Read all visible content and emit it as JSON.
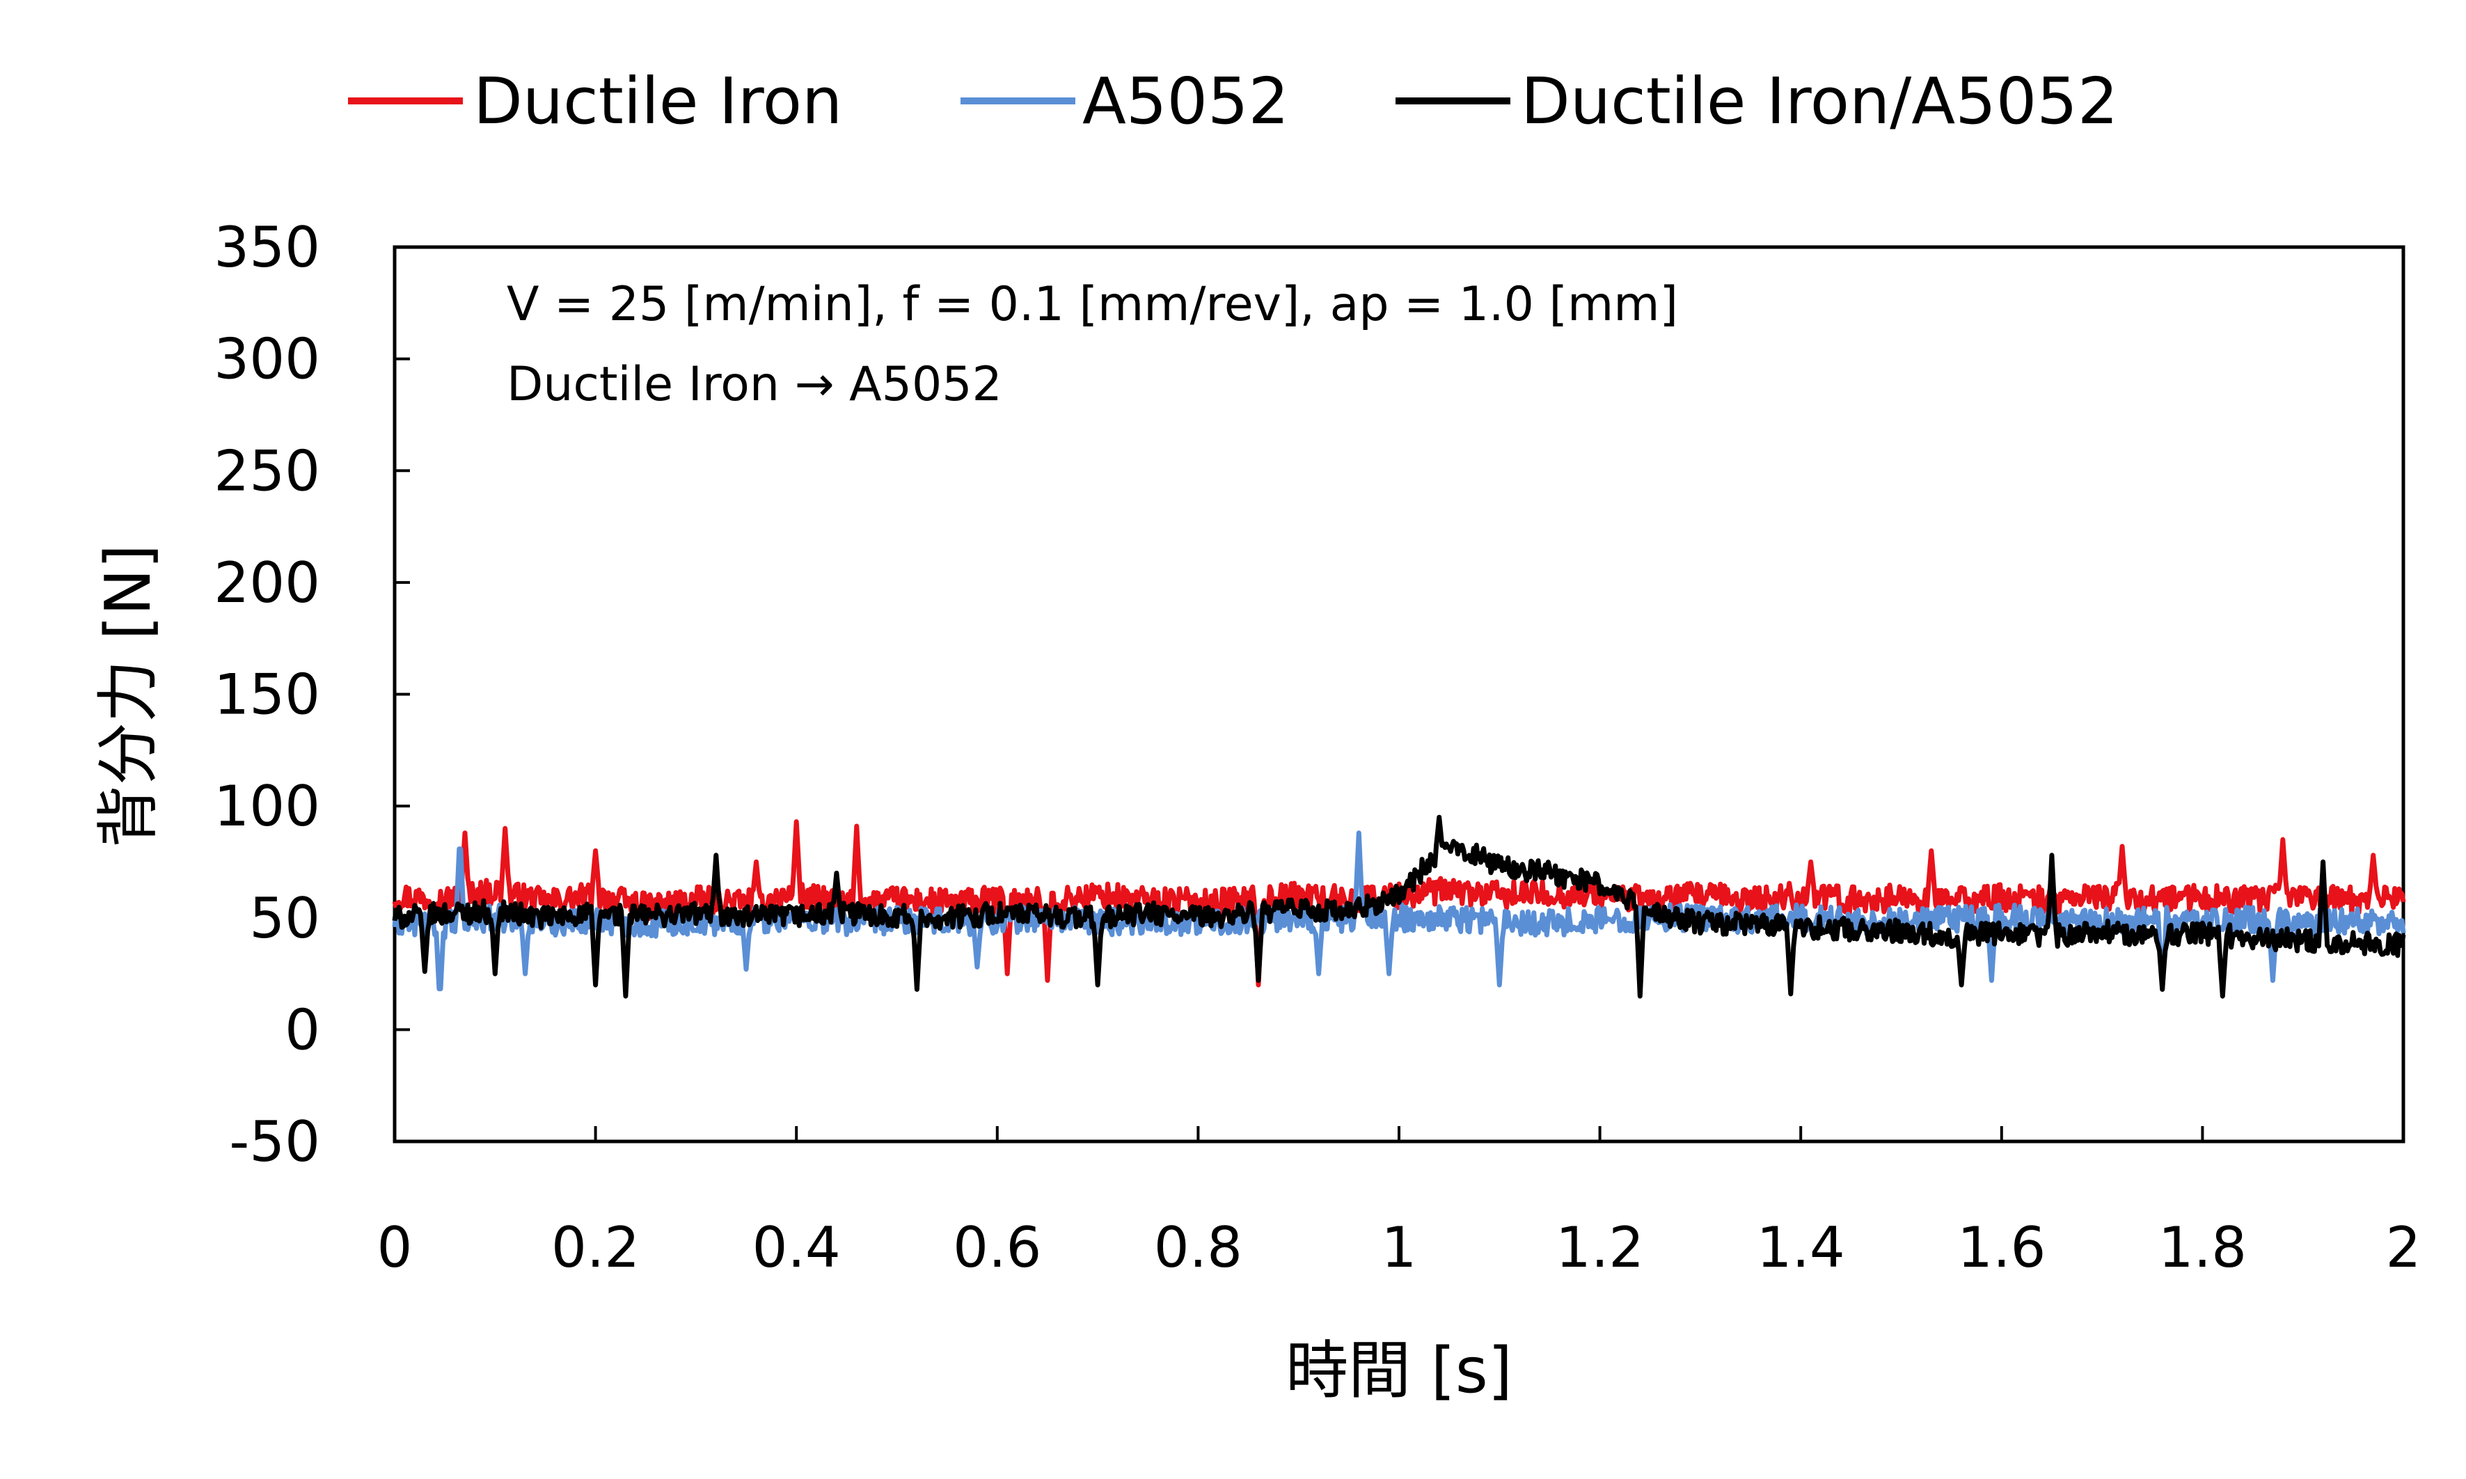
{
  "chart_data": {
    "type": "line",
    "xlabel": "時間 [s]",
    "ylabel": "背分力 [N]",
    "xlim": [
      0,
      2
    ],
    "ylim": [
      -50,
      350
    ],
    "xticks": [
      "0",
      "0.2",
      "0.4",
      "0.6",
      "0.8",
      "1",
      "1.2",
      "1.4",
      "1.6",
      "1.8",
      "2"
    ],
    "yticks": [
      "350",
      "300",
      "250",
      "200",
      "150",
      "100",
      "50",
      "0",
      "-50"
    ],
    "grid": false,
    "legend_position": "top",
    "annotations": [
      "V = 25 [m/min], f = 0.1 [mm/rev], ap = 1.0 [mm]",
      "Ductile Iron → A5052"
    ],
    "series": [
      {
        "name": "Ductile Iron",
        "color": "#e8121a",
        "x": [
          0,
          0.05,
          0.1,
          0.15,
          0.2,
          0.25,
          0.3,
          0.35,
          0.4,
          0.45,
          0.5,
          0.55,
          0.6,
          0.65,
          0.7,
          0.75,
          0.8,
          0.85,
          0.9,
          0.95,
          1.0,
          1.05,
          1.1,
          1.15,
          1.2,
          1.25,
          1.3,
          1.35,
          1.4,
          1.45,
          1.5,
          1.55,
          1.6,
          1.65,
          1.7,
          1.75,
          1.8,
          1.85,
          1.9,
          1.95,
          2.0
        ],
        "values": [
          60,
          58,
          62,
          57,
          60,
          55,
          58,
          57,
          60,
          56,
          58,
          57,
          58,
          57,
          60,
          58,
          57,
          58,
          60,
          58,
          60,
          62,
          60,
          61,
          60,
          58,
          60,
          58,
          60,
          58,
          59,
          58,
          59,
          58,
          60,
          58,
          59,
          58,
          60,
          58,
          60
        ],
        "spikes": [
          {
            "x": 0.07,
            "y": 88
          },
          {
            "x": 0.11,
            "y": 90
          },
          {
            "x": 0.2,
            "y": 80
          },
          {
            "x": 0.36,
            "y": 75
          },
          {
            "x": 0.4,
            "y": 93
          },
          {
            "x": 0.46,
            "y": 91
          },
          {
            "x": 0.61,
            "y": 25
          },
          {
            "x": 0.65,
            "y": 22
          },
          {
            "x": 0.86,
            "y": 82
          },
          {
            "x": 0.86,
            "y": 20
          },
          {
            "x": 1.41,
            "y": 75
          },
          {
            "x": 1.53,
            "y": 80
          },
          {
            "x": 1.72,
            "y": 82
          },
          {
            "x": 1.88,
            "y": 85
          },
          {
            "x": 1.97,
            "y": 78
          }
        ]
      },
      {
        "name": "A5052",
        "color": "#5a8fd6",
        "x": [
          0,
          0.05,
          0.1,
          0.15,
          0.2,
          0.25,
          0.3,
          0.35,
          0.4,
          0.45,
          0.5,
          0.55,
          0.6,
          0.65,
          0.7,
          0.75,
          0.8,
          0.85,
          0.9,
          0.95,
          1.0,
          1.05,
          1.1,
          1.15,
          1.2,
          1.25,
          1.3,
          1.35,
          1.4,
          1.45,
          1.5,
          1.55,
          1.6,
          1.65,
          1.7,
          1.75,
          1.8,
          1.85,
          1.9,
          1.95,
          2.0
        ],
        "values": [
          48,
          47,
          50,
          48,
          49,
          47,
          48,
          49,
          50,
          48,
          49,
          48,
          49,
          50,
          48,
          49,
          48,
          49,
          50,
          49,
          50,
          50,
          49,
          48,
          49,
          50,
          50,
          49,
          50,
          49,
          48,
          49,
          50,
          49,
          48,
          49,
          48,
          49,
          48,
          49,
          48
        ],
        "spikes": [
          {
            "x": 0.045,
            "y": 12
          },
          {
            "x": 0.065,
            "y": 88
          },
          {
            "x": 0.13,
            "y": 25
          },
          {
            "x": 0.35,
            "y": 27
          },
          {
            "x": 0.58,
            "y": 28
          },
          {
            "x": 0.92,
            "y": 25
          },
          {
            "x": 0.96,
            "y": 88
          },
          {
            "x": 0.99,
            "y": 25
          },
          {
            "x": 1.1,
            "y": 20
          },
          {
            "x": 1.59,
            "y": 22
          },
          {
            "x": 1.76,
            "y": 18
          },
          {
            "x": 1.87,
            "y": 22
          }
        ]
      },
      {
        "name": "Ductile Iron/A5052",
        "color": "#000000",
        "x": [
          0,
          0.05,
          0.1,
          0.15,
          0.2,
          0.25,
          0.3,
          0.35,
          0.4,
          0.45,
          0.5,
          0.55,
          0.6,
          0.65,
          0.7,
          0.75,
          0.8,
          0.85,
          0.9,
          0.95,
          1.0,
          1.03,
          1.06,
          1.1,
          1.15,
          1.2,
          1.25,
          1.3,
          1.35,
          1.4,
          1.45,
          1.5,
          1.55,
          1.6,
          1.65,
          1.7,
          1.75,
          1.8,
          1.85,
          1.9,
          1.95,
          2.0
        ],
        "values": [
          50,
          52,
          53,
          50,
          52,
          51,
          52,
          50,
          51,
          52,
          51,
          50,
          52,
          51,
          50,
          52,
          50,
          52,
          54,
          52,
          60,
          75,
          82,
          73,
          70,
          65,
          52,
          48,
          47,
          46,
          45,
          44,
          42,
          43,
          42,
          44,
          42,
          43,
          41,
          40,
          39,
          38
        ],
        "spikes": [
          {
            "x": 0.03,
            "y": 26
          },
          {
            "x": 0.1,
            "y": 25
          },
          {
            "x": 0.2,
            "y": 20
          },
          {
            "x": 0.23,
            "y": 15
          },
          {
            "x": 0.32,
            "y": 78
          },
          {
            "x": 0.44,
            "y": 70
          },
          {
            "x": 0.52,
            "y": 18
          },
          {
            "x": 0.7,
            "y": 20
          },
          {
            "x": 0.86,
            "y": 22
          },
          {
            "x": 1.04,
            "y": 95
          },
          {
            "x": 1.17,
            "y": 70
          },
          {
            "x": 1.24,
            "y": 15
          },
          {
            "x": 1.39,
            "y": 16
          },
          {
            "x": 1.56,
            "y": 20
          },
          {
            "x": 1.65,
            "y": 78
          },
          {
            "x": 1.76,
            "y": 18
          },
          {
            "x": 1.82,
            "y": 15
          },
          {
            "x": 1.92,
            "y": 75
          }
        ]
      }
    ]
  }
}
